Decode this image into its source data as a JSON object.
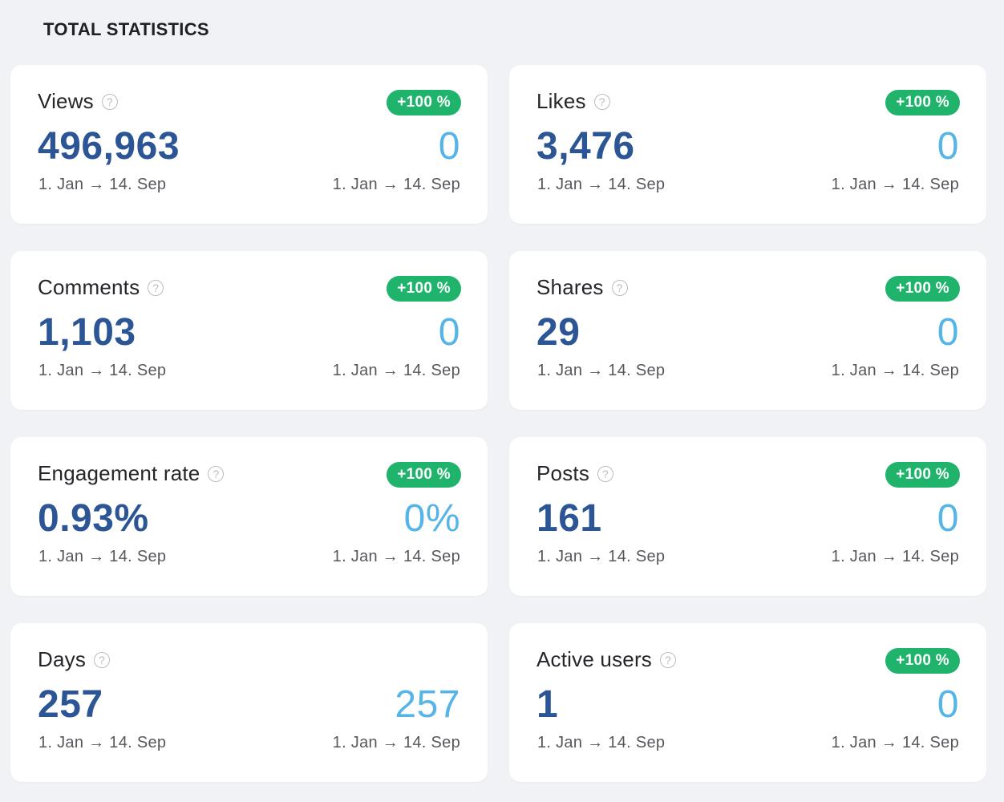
{
  "section": {
    "title": "TOTAL STATISTICS"
  },
  "colors": {
    "badge_green": "#1fb36b",
    "main_value_blue": "#2c5596",
    "compare_value_lightblue": "#55b4e8",
    "background": "#f1f2f6"
  },
  "icons": {
    "help": "question-circle-icon"
  },
  "cards": [
    {
      "title": "Views",
      "badge": "+100 %",
      "value": "496,963",
      "compare": "0",
      "date_left": "1. Jan → 14. Sep",
      "date_right": "1. Jan → 14. Sep"
    },
    {
      "title": "Likes",
      "badge": "+100 %",
      "value": "3,476",
      "compare": "0",
      "date_left": "1. Jan → 14. Sep",
      "date_right": "1. Jan → 14. Sep"
    },
    {
      "title": "Comments",
      "badge": "+100 %",
      "value": "1,103",
      "compare": "0",
      "date_left": "1. Jan → 14. Sep",
      "date_right": "1. Jan → 14. Sep"
    },
    {
      "title": "Shares",
      "badge": "+100 %",
      "value": "29",
      "compare": "0",
      "date_left": "1. Jan → 14. Sep",
      "date_right": "1. Jan → 14. Sep"
    },
    {
      "title": "Engagement rate",
      "badge": "+100 %",
      "value": "0.93%",
      "compare": "0%",
      "date_left": "1. Jan → 14. Sep",
      "date_right": "1. Jan → 14. Sep"
    },
    {
      "title": "Posts",
      "badge": "+100 %",
      "value": "161",
      "compare": "0",
      "date_left": "1. Jan → 14. Sep",
      "date_right": "1. Jan → 14. Sep"
    },
    {
      "title": "Days",
      "badge": null,
      "value": "257",
      "compare": "257",
      "date_left": "1. Jan → 14. Sep",
      "date_right": "1. Jan → 14. Sep"
    },
    {
      "title": "Active users",
      "badge": "+100 %",
      "value": "1",
      "compare": "0",
      "date_left": "1. Jan → 14. Sep",
      "date_right": "1. Jan → 14. Sep"
    }
  ]
}
